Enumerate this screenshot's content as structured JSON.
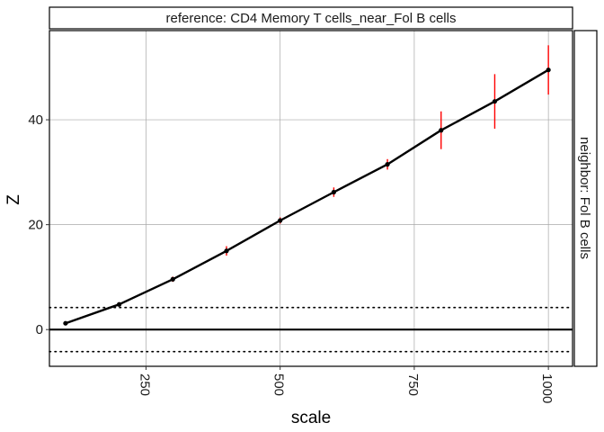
{
  "chart_data": {
    "type": "line",
    "facet_title_top": "reference: CD4 Memory T cells_near_Fol B cells",
    "facet_title_right": "neighbor: Fol B cells",
    "xlabel": "scale",
    "ylabel": "Z",
    "xlim": [
      70,
      1045
    ],
    "ylim": [
      -7,
      57
    ],
    "x_ticks": [
      250,
      500,
      750,
      1000
    ],
    "x_tick_labels": [
      "250",
      "500",
      "750",
      "1000"
    ],
    "y_ticks": [
      0,
      20,
      40
    ],
    "y_tick_labels": [
      "0",
      "20",
      "40"
    ],
    "grid": true,
    "reference_lines": {
      "solid": [
        0
      ],
      "dotted": [
        4.2,
        -4.2
      ]
    },
    "series": [
      {
        "x": [
          100,
          200,
          300,
          400,
          500,
          600,
          700,
          800,
          900,
          1000
        ],
        "y": [
          1.2,
          4.8,
          9.6,
          15.0,
          20.8,
          26.2,
          31.5,
          38.0,
          43.5,
          49.5
        ],
        "err_low": [
          0.9,
          4.4,
          9.1,
          14.1,
          20.2,
          25.3,
          30.5,
          34.4,
          38.3,
          44.8
        ],
        "err_high": [
          1.5,
          5.2,
          10.1,
          15.9,
          21.4,
          27.1,
          32.5,
          41.6,
          48.7,
          54.2
        ]
      }
    ],
    "colors": {
      "line": "#000000",
      "points": "#000000",
      "error_bars": "#ff0000",
      "grid": "#a8a8a8",
      "zero_line": "#000000",
      "dotted_lines": "#000000"
    }
  }
}
